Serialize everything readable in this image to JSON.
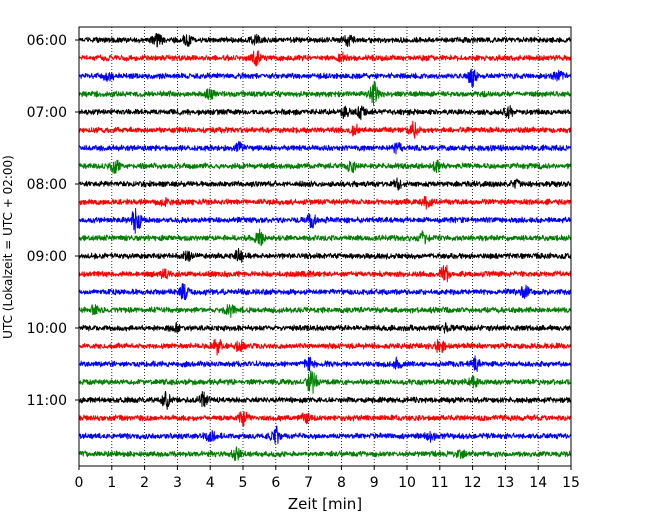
{
  "chart_data": {
    "type": "line",
    "title": "",
    "xlabel": "Zeit  [min]",
    "ylabel": "UTC (Lokalzeit = UTC + 02:00)",
    "xlim": [
      0,
      15
    ],
    "x_ticks": [
      "0",
      "1",
      "2",
      "3",
      "4",
      "5",
      "6",
      "7",
      "8",
      "9",
      "10",
      "11",
      "12",
      "13",
      "14",
      "15"
    ],
    "y_ticks": [
      "06:00",
      "07:00",
      "08:00",
      "09:00",
      "10:00",
      "11:00"
    ],
    "grid": "vertical dotted",
    "trace_interval_minutes": 15,
    "trace_colors": [
      "#000000",
      "#ff0000",
      "#0000ff",
      "#008000"
    ],
    "series": [
      {
        "start": "06:00",
        "color": "#000000",
        "bursts": [
          {
            "x": 2.4,
            "amp": 1.0
          },
          {
            "x": 3.3,
            "amp": 0.9
          },
          {
            "x": 5.4,
            "amp": 0.8
          },
          {
            "x": 8.2,
            "amp": 0.8
          }
        ]
      },
      {
        "start": "06:15",
        "color": "#ff0000",
        "bursts": [
          {
            "x": 5.4,
            "amp": 1.4
          },
          {
            "x": 8.0,
            "amp": 0.7
          }
        ]
      },
      {
        "start": "06:30",
        "color": "#0000ff",
        "bursts": [
          {
            "x": 0.9,
            "amp": 0.8
          },
          {
            "x": 12.0,
            "amp": 1.6
          },
          {
            "x": 14.6,
            "amp": 0.8
          }
        ]
      },
      {
        "start": "06:45",
        "color": "#008000",
        "bursts": [
          {
            "x": 9.0,
            "amp": 2.0
          },
          {
            "x": 4.0,
            "amp": 0.8
          }
        ]
      },
      {
        "start": "07:00",
        "color": "#000000",
        "bursts": [
          {
            "x": 8.1,
            "amp": 0.9
          },
          {
            "x": 8.6,
            "amp": 1.0
          },
          {
            "x": 13.1,
            "amp": 0.8
          }
        ]
      },
      {
        "start": "07:15",
        "color": "#ff0000",
        "bursts": [
          {
            "x": 8.4,
            "amp": 0.9
          },
          {
            "x": 10.2,
            "amp": 1.2
          }
        ]
      },
      {
        "start": "07:30",
        "color": "#0000ff",
        "bursts": [
          {
            "x": 4.9,
            "amp": 0.7
          },
          {
            "x": 9.7,
            "amp": 0.7
          }
        ]
      },
      {
        "start": "07:45",
        "color": "#008000",
        "bursts": [
          {
            "x": 1.1,
            "amp": 1.0
          },
          {
            "x": 8.3,
            "amp": 0.9
          },
          {
            "x": 10.9,
            "amp": 0.8
          }
        ]
      },
      {
        "start": "08:00",
        "color": "#000000",
        "bursts": [
          {
            "x": 9.7,
            "amp": 0.8
          },
          {
            "x": 13.3,
            "amp": 0.7
          }
        ]
      },
      {
        "start": "08:15",
        "color": "#ff0000",
        "bursts": [
          {
            "x": 10.6,
            "amp": 0.9
          },
          {
            "x": 2.6,
            "amp": 0.6
          }
        ]
      },
      {
        "start": "08:30",
        "color": "#0000ff",
        "bursts": [
          {
            "x": 1.75,
            "amp": 2.2
          },
          {
            "x": 7.1,
            "amp": 1.3
          }
        ]
      },
      {
        "start": "08:45",
        "color": "#008000",
        "bursts": [
          {
            "x": 5.5,
            "amp": 1.1
          },
          {
            "x": 10.5,
            "amp": 0.8
          }
        ]
      },
      {
        "start": "09:00",
        "color": "#000000",
        "bursts": [
          {
            "x": 4.9,
            "amp": 1.1
          },
          {
            "x": 3.3,
            "amp": 0.7
          }
        ]
      },
      {
        "start": "09:15",
        "color": "#ff0000",
        "bursts": [
          {
            "x": 11.15,
            "amp": 1.5
          },
          {
            "x": 2.6,
            "amp": 0.6
          }
        ]
      },
      {
        "start": "09:30",
        "color": "#0000ff",
        "bursts": [
          {
            "x": 3.2,
            "amp": 1.2
          },
          {
            "x": 13.6,
            "amp": 1.0
          }
        ]
      },
      {
        "start": "09:45",
        "color": "#008000",
        "bursts": [
          {
            "x": 4.6,
            "amp": 1.0
          },
          {
            "x": 0.5,
            "amp": 0.8
          }
        ]
      },
      {
        "start": "10:00",
        "color": "#000000",
        "bursts": [
          {
            "x": 3.0,
            "amp": 0.6
          },
          {
            "x": 11.2,
            "amp": 0.6
          }
        ]
      },
      {
        "start": "10:15",
        "color": "#ff0000",
        "bursts": [
          {
            "x": 4.2,
            "amp": 1.3
          },
          {
            "x": 4.9,
            "amp": 1.0
          },
          {
            "x": 11.0,
            "amp": 1.1
          }
        ]
      },
      {
        "start": "10:30",
        "color": "#0000ff",
        "bursts": [
          {
            "x": 7.0,
            "amp": 1.2
          },
          {
            "x": 9.7,
            "amp": 0.8
          },
          {
            "x": 12.1,
            "amp": 1.0
          }
        ]
      },
      {
        "start": "10:45",
        "color": "#008000",
        "bursts": [
          {
            "x": 7.1,
            "amp": 2.2
          },
          {
            "x": 12.0,
            "amp": 1.0
          }
        ]
      },
      {
        "start": "11:00",
        "color": "#000000",
        "bursts": [
          {
            "x": 2.65,
            "amp": 1.3
          },
          {
            "x": 3.8,
            "amp": 1.2
          }
        ]
      },
      {
        "start": "11:15",
        "color": "#ff0000",
        "bursts": [
          {
            "x": 5.0,
            "amp": 1.1
          },
          {
            "x": 6.9,
            "amp": 0.6
          }
        ]
      },
      {
        "start": "11:30",
        "color": "#0000ff",
        "bursts": [
          {
            "x": 6.0,
            "amp": 1.6
          },
          {
            "x": 4.0,
            "amp": 1.0
          },
          {
            "x": 10.7,
            "amp": 0.8
          }
        ]
      },
      {
        "start": "11:45",
        "color": "#008000",
        "bursts": [
          {
            "x": 4.8,
            "amp": 0.8
          },
          {
            "x": 11.6,
            "amp": 0.7
          }
        ]
      }
    ]
  }
}
